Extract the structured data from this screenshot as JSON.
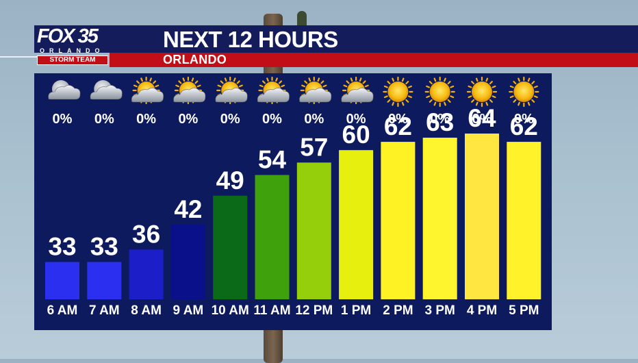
{
  "header": {
    "title": "NEXT 12 HOURS",
    "location": "ORLANDO"
  },
  "logo": {
    "brand": "FOX 35",
    "city": "ORLANDO",
    "team": "STORM TEAM"
  },
  "colors": {
    "header_navy": "#151c5b",
    "header_red": "#c20f17",
    "panel_bg": "#0d1a5e"
  },
  "chart_data": {
    "type": "bar",
    "categories": [
      "6 AM",
      "7 AM",
      "8 AM",
      "9 AM",
      "10 AM",
      "11 AM",
      "12 PM",
      "1 PM",
      "2 PM",
      "3 PM",
      "4 PM",
      "5 PM"
    ],
    "values": [
      33,
      33,
      36,
      42,
      49,
      54,
      57,
      60,
      62,
      63,
      64,
      62
    ],
    "precip_chance": [
      "0%",
      "0%",
      "0%",
      "0%",
      "0%",
      "0%",
      "0%",
      "0%",
      "0%",
      "0%",
      "0%",
      "0%"
    ],
    "conditions": [
      "moon-cloud-icon",
      "moon-cloud-icon",
      "sun-cloud-icon",
      "sun-cloud-icon",
      "sun-cloud-icon",
      "sun-cloud-icon",
      "sun-cloud-icon",
      "sun-cloud-icon",
      "sun-icon",
      "sun-icon",
      "sun-icon",
      "sun-icon"
    ],
    "bar_colors": [
      "#2a2ff0",
      "#2a2ff0",
      "#1c1fc8",
      "#0a0f8a",
      "#0b6a18",
      "#3fa10c",
      "#95ce0a",
      "#e6ef0d",
      "#fff224",
      "#fff52e",
      "#ffe640",
      "#fff22a"
    ],
    "title": "NEXT 12 HOURS",
    "xlabel": "",
    "ylabel": "",
    "grid": false,
    "legend": "none"
  }
}
